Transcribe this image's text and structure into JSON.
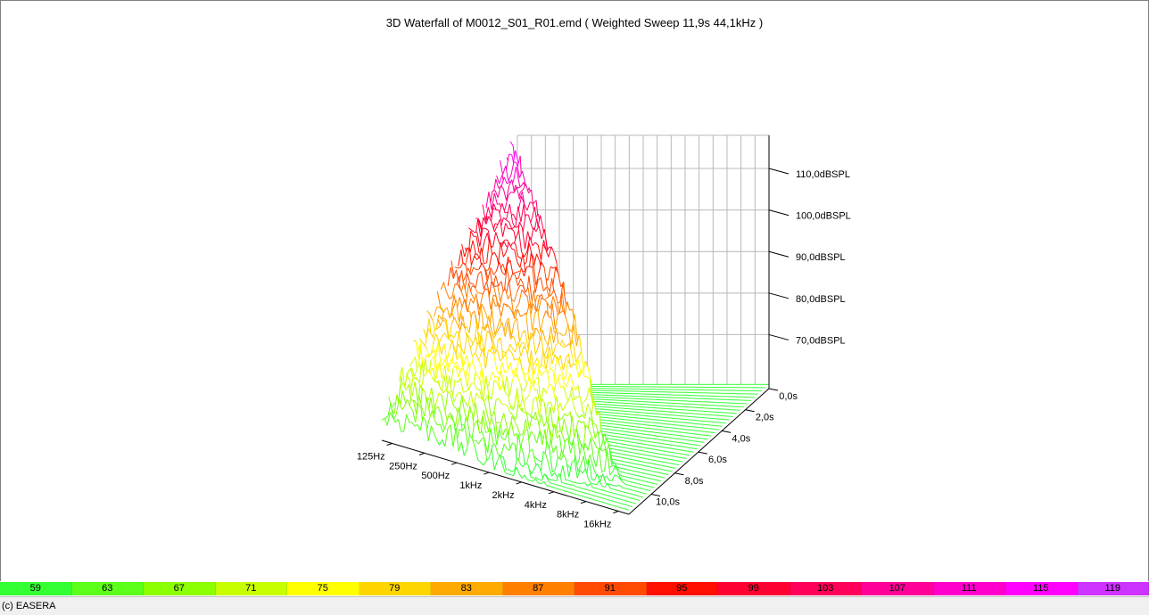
{
  "window": {
    "title": "3D Waterfall of M0012_S01_R01.emd ( Weighted Sweep 11,9s 44,1kHz )",
    "copyright": "(c) EASERA"
  },
  "chart_data": {
    "type": "waterfall-3d",
    "title": "3D Waterfall of M0012_S01_R01.emd ( Weighted Sweep 11,9s 44,1kHz )",
    "frequency_axis": {
      "scale": "log",
      "tick_labels": [
        "125Hz",
        "250Hz",
        "500Hz",
        "1kHz",
        "2kHz",
        "4kHz",
        "8kHz",
        "16kHz"
      ],
      "tick_values_hz": [
        125,
        250,
        500,
        1000,
        2000,
        4000,
        8000,
        16000
      ]
    },
    "time_axis": {
      "tick_labels": [
        "0,0s",
        "2,0s",
        "4,0s",
        "6,0s",
        "8,0s",
        "10,0s"
      ],
      "tick_values_s": [
        0,
        2,
        4,
        6,
        8,
        10
      ],
      "range_s": [
        0,
        11.9
      ]
    },
    "level_axis": {
      "tick_labels": [
        "70,0dBSPL",
        "80,0dBSPL",
        "90,0dBSPL",
        "100,0dBSPL",
        "110,0dBSPL"
      ],
      "tick_values_db": [
        70,
        80,
        90,
        100,
        110
      ],
      "range_db": [
        57,
        120
      ]
    },
    "color_scale": {
      "labels": [
        "59",
        "63",
        "67",
        "71",
        "75",
        "79",
        "83",
        "87",
        "91",
        "95",
        "99",
        "103",
        "107",
        "111",
        "115",
        "119"
      ],
      "colors": [
        "#33ff33",
        "#5cff1a",
        "#8cff00",
        "#c8ff00",
        "#ffff00",
        "#ffd500",
        "#ffaa00",
        "#ff7f00",
        "#ff4a00",
        "#ff0f00",
        "#ff0033",
        "#ff005a",
        "#ff0099",
        "#ff00cc",
        "#ff00ff",
        "#cc33ff"
      ]
    },
    "surface": {
      "slices": 40,
      "freq_min_hz": 100,
      "freq_max_hz": 20000,
      "sweep_start_s": 0,
      "sweep_end_s": 11.9,
      "peak_level_db": 118,
      "floor_level_db": 58,
      "decay_db_per_slice": 1.4
    }
  }
}
